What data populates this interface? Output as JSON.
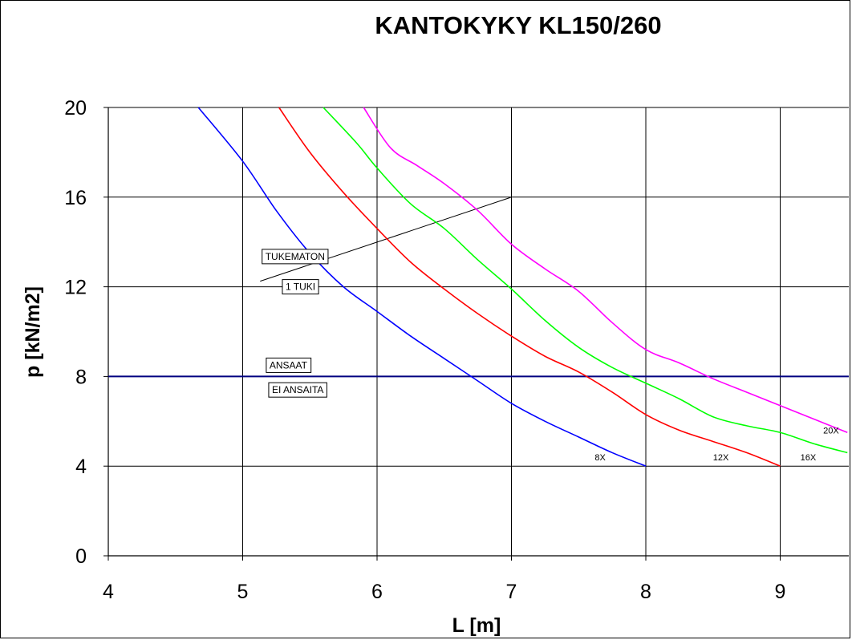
{
  "chart_data": {
    "type": "line",
    "title": "KANTOKYKY KL150/260",
    "xlabel": "L [m]",
    "ylabel": "p [kN/m2]",
    "xlim": [
      4,
      9.5
    ],
    "ylim": [
      0,
      20
    ],
    "xticks": [
      4,
      5,
      6,
      7,
      8,
      9
    ],
    "yticks": [
      0,
      4,
      8,
      12,
      16,
      20
    ],
    "grid": true,
    "series": [
      {
        "name": "8X",
        "color": "#0000ff",
        "x": [
          4.67,
          5.0,
          5.25,
          5.5,
          5.75,
          6.0,
          6.25,
          6.5,
          6.75,
          7.0,
          7.25,
          7.5,
          7.75,
          8.0
        ],
        "y": [
          20.0,
          17.6,
          15.4,
          13.5,
          12.0,
          10.9,
          9.8,
          8.8,
          7.8,
          6.8,
          6.0,
          5.3,
          4.6,
          4.0
        ]
      },
      {
        "name": "12X",
        "color": "#ff0000",
        "x": [
          5.27,
          5.5,
          5.75,
          6.0,
          6.25,
          6.5,
          6.75,
          7.0,
          7.25,
          7.5,
          7.75,
          8.0,
          8.25,
          8.5,
          8.75,
          9.0
        ],
        "y": [
          20.0,
          18.0,
          16.2,
          14.6,
          13.1,
          11.9,
          10.8,
          9.8,
          8.9,
          8.2,
          7.3,
          6.3,
          5.6,
          5.1,
          4.6,
          4.0
        ]
      },
      {
        "name": "16X",
        "color": "#00ff00",
        "x": [
          5.6,
          5.85,
          6.0,
          6.25,
          6.5,
          6.75,
          7.0,
          7.25,
          7.5,
          7.75,
          8.0,
          8.25,
          8.5,
          8.75,
          9.0,
          9.25,
          9.5
        ],
        "y": [
          20.0,
          18.4,
          17.3,
          15.7,
          14.6,
          13.2,
          11.9,
          10.5,
          9.3,
          8.4,
          7.7,
          7.0,
          6.2,
          5.8,
          5.5,
          5.0,
          4.6
        ]
      },
      {
        "name": "20X",
        "color": "#ff00ff",
        "x": [
          5.9,
          6.1,
          6.3,
          6.5,
          6.75,
          7.0,
          7.25,
          7.5,
          7.75,
          8.0,
          8.25,
          8.5,
          8.75,
          9.0,
          9.25,
          9.5
        ],
        "y": [
          20.0,
          18.2,
          17.4,
          16.6,
          15.4,
          13.9,
          12.8,
          11.8,
          10.4,
          9.2,
          8.6,
          7.9,
          7.3,
          6.7,
          6.1,
          5.5
        ]
      }
    ],
    "series_label_positions": [
      {
        "name": "8X",
        "x": 7.62,
        "y": 4.4
      },
      {
        "name": "12X",
        "x": 8.5,
        "y": 4.4
      },
      {
        "name": "16X",
        "x": 9.15,
        "y": 4.4
      },
      {
        "name": "20X",
        "x": 9.32,
        "y": 5.6
      }
    ],
    "reference_lines": [
      {
        "type": "horizontal",
        "y": 8,
        "color": "#000080"
      },
      {
        "type": "segment",
        "x1": 5.13,
        "y1": 12.25,
        "x2": 7.0,
        "y2": 16.0,
        "color": "#000000"
      }
    ],
    "annotations": [
      {
        "text": "TUKEMATON",
        "x": 5.39,
        "y": 13.35
      },
      {
        "text": "1 TUKI",
        "x": 5.43,
        "y": 12.0
      },
      {
        "text": "ANSAAT",
        "x": 5.34,
        "y": 8.5
      },
      {
        "text": "EI ANSAITA",
        "x": 5.41,
        "y": 7.4
      }
    ]
  }
}
